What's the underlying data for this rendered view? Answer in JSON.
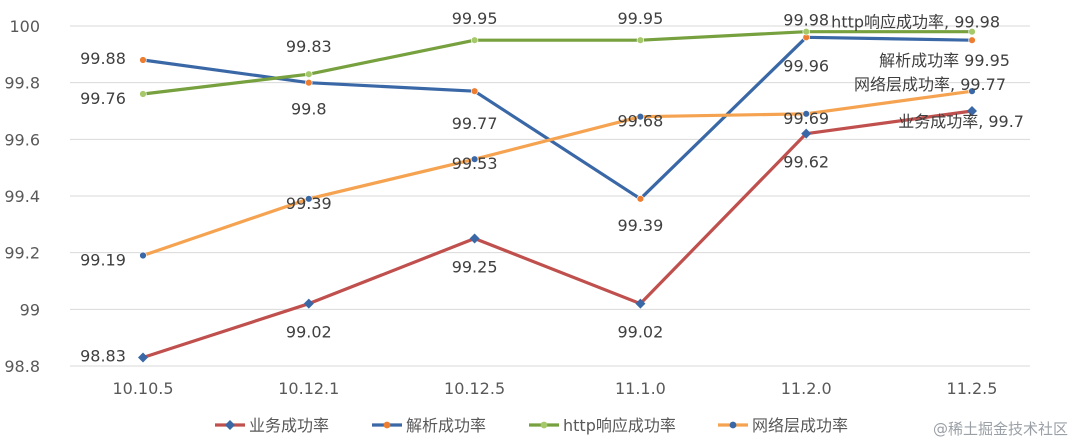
{
  "chart_data": {
    "type": "line",
    "categories": [
      "10.10.5",
      "10.12.1",
      "10.12.5",
      "11.1.0",
      "11.2.0",
      "11.2.5"
    ],
    "ylim": [
      98.8,
      100
    ],
    "yticks": [
      98.8,
      99,
      99.2,
      99.4,
      99.6,
      99.8,
      100
    ],
    "ytick_labels": [
      "98.8",
      "99",
      "99.2",
      "99.4",
      "99.6",
      "99.8",
      "100"
    ],
    "grid": "horizontal",
    "legend_position": "bottom",
    "series": [
      {
        "name": "业务成功率",
        "color": "#c0504d",
        "marker_color": "#3a68a7",
        "marker": "diamond",
        "values": [
          98.83,
          99.02,
          99.25,
          99.02,
          99.62,
          99.7
        ],
        "value_labels": [
          "98.83",
          "99.02",
          "99.25",
          "99.02",
          "99.62",
          "99.7"
        ],
        "end_label": "业务成功率, 99.7"
      },
      {
        "name": "解析成功率",
        "color": "#3a68a7",
        "marker_color": "#ed7d31",
        "marker": "circle",
        "values": [
          99.88,
          99.8,
          99.77,
          99.39,
          99.96,
          99.95
        ],
        "value_labels": [
          "99.88",
          "99.8",
          "99.77",
          "99.39",
          "99.96",
          "99.95"
        ],
        "end_label": "解析成功率 99.95"
      },
      {
        "name": "http响应成功率",
        "color": "#77a03e",
        "marker_color": "#a5c96a",
        "marker": "circle",
        "values": [
          99.76,
          99.83,
          99.95,
          99.95,
          99.98,
          99.98
        ],
        "value_labels": [
          "99.76",
          "99.83",
          "99.95",
          "99.95",
          "99.98",
          "99.98"
        ],
        "end_label": "http响应成功率, 99.98"
      },
      {
        "name": "网络层成功率",
        "color": "#f5a350",
        "marker_color": "#3a68a7",
        "marker": "circle",
        "values": [
          99.19,
          99.39,
          99.53,
          99.68,
          99.69,
          99.77
        ],
        "value_labels": [
          "99.19",
          "99.39",
          "99.53",
          "99.68",
          "99.69",
          "99.77"
        ],
        "end_label": "网络层成功率, 99.77"
      }
    ]
  },
  "watermark": "@稀土掘金技术社区"
}
